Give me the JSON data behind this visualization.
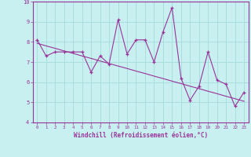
{
  "xlabel": "Windchill (Refroidissement éolien,°C)",
  "bg_color": "#c8f0f0",
  "line_color": "#993399",
  "xlim": [
    -0.5,
    23.5
  ],
  "ylim": [
    4,
    10
  ],
  "xticks": [
    0,
    1,
    2,
    3,
    4,
    5,
    6,
    7,
    8,
    9,
    10,
    11,
    12,
    13,
    14,
    15,
    16,
    17,
    18,
    19,
    20,
    21,
    22,
    23
  ],
  "yticks": [
    4,
    5,
    6,
    7,
    8,
    9,
    10
  ],
  "grid_color": "#aadddd",
  "series1_x": [
    0,
    1,
    2,
    3,
    4,
    5,
    6,
    7,
    8,
    9,
    10,
    11,
    12,
    13,
    14,
    15,
    16,
    17,
    18,
    19,
    20,
    21,
    22,
    23
  ],
  "series1_y": [
    8.1,
    7.3,
    7.5,
    7.5,
    7.5,
    7.5,
    6.5,
    7.3,
    6.9,
    9.1,
    7.4,
    8.1,
    8.1,
    7.0,
    8.5,
    9.7,
    6.2,
    5.1,
    5.8,
    7.5,
    6.1,
    5.9,
    4.8,
    5.5
  ],
  "trend_y": [
    7.93,
    7.8,
    7.68,
    7.55,
    7.43,
    7.3,
    7.18,
    7.05,
    6.93,
    6.8,
    6.68,
    6.55,
    6.43,
    6.3,
    6.18,
    6.05,
    5.93,
    5.8,
    5.68,
    5.55,
    5.43,
    5.3,
    5.18,
    5.05
  ]
}
